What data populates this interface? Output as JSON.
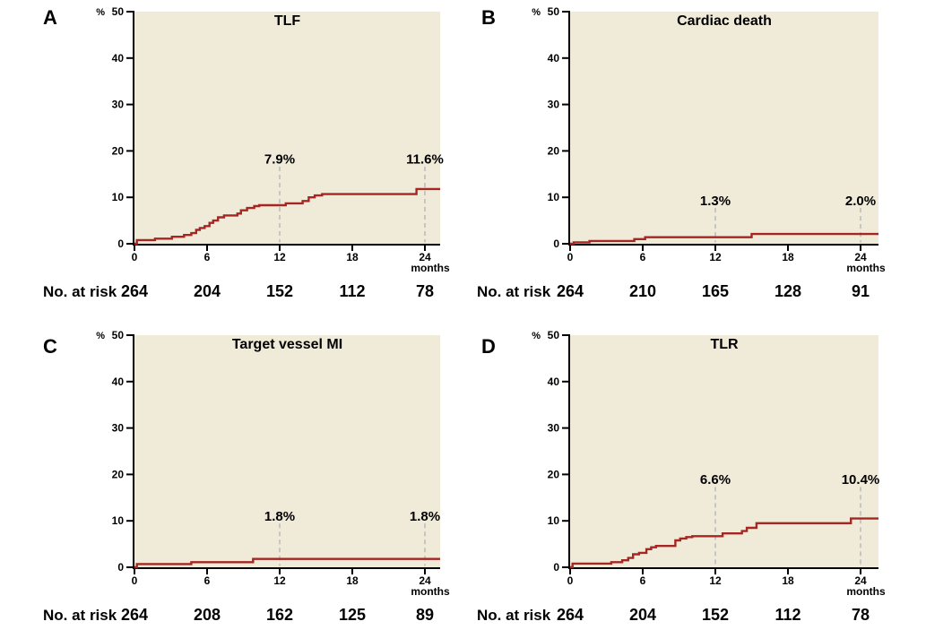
{
  "figure": {
    "risk_label": "No. at risk",
    "y_axis": {
      "percent_symbol": "%",
      "ticks": [
        0,
        10,
        20,
        30,
        40,
        50
      ],
      "max": 50
    },
    "x_axis": {
      "ticks": [
        0,
        6,
        12,
        18,
        24
      ],
      "unit": "months"
    },
    "colors": {
      "plot_bg": "#efebd8",
      "curve": "#a52622",
      "dash": "#bcbcbc",
      "ink": "#000000"
    }
  },
  "chart_data": [
    {
      "panel": "A",
      "type": "line",
      "title": "TLF",
      "xlabel": "months",
      "ylabel": "%",
      "xlim": [
        0,
        25.3
      ],
      "ylim": [
        0,
        50
      ],
      "annotations": [
        {
          "x": 12,
          "label": "7.9%",
          "label_y_pct": 18.2
        },
        {
          "x": 24,
          "label": "11.6%",
          "label_y_pct": 18.2
        }
      ],
      "at_risk": {
        "times": [
          0,
          6,
          12,
          18,
          24
        ],
        "counts": [
          264,
          204,
          152,
          112,
          78
        ]
      },
      "steps": [
        [
          0,
          0
        ],
        [
          0.2,
          0.8
        ],
        [
          1.7,
          0.8
        ],
        [
          1.7,
          1.1
        ],
        [
          3.1,
          1.1
        ],
        [
          3.1,
          1.5
        ],
        [
          4.1,
          1.5
        ],
        [
          4.1,
          1.9
        ],
        [
          4.7,
          1.9
        ],
        [
          4.7,
          2.3
        ],
        [
          5.1,
          2.3
        ],
        [
          5.1,
          3.0
        ],
        [
          5.4,
          3.0
        ],
        [
          5.4,
          3.4
        ],
        [
          5.8,
          3.4
        ],
        [
          5.8,
          3.8
        ],
        [
          6.2,
          3.8
        ],
        [
          6.2,
          4.5
        ],
        [
          6.5,
          4.5
        ],
        [
          6.5,
          5.0
        ],
        [
          6.9,
          5.0
        ],
        [
          6.9,
          5.7
        ],
        [
          7.4,
          5.7
        ],
        [
          7.4,
          6.1
        ],
        [
          8.5,
          6.1
        ],
        [
          8.5,
          6.5
        ],
        [
          8.8,
          6.5
        ],
        [
          8.8,
          7.2
        ],
        [
          9.3,
          7.2
        ],
        [
          9.3,
          7.7
        ],
        [
          9.9,
          7.7
        ],
        [
          9.9,
          8.1
        ],
        [
          10.3,
          8.1
        ],
        [
          10.3,
          8.3
        ],
        [
          12.5,
          8.3
        ],
        [
          12.5,
          8.7
        ],
        [
          13.9,
          8.7
        ],
        [
          13.9,
          9.2
        ],
        [
          14.4,
          9.2
        ],
        [
          14.4,
          10.0
        ],
        [
          14.9,
          10.0
        ],
        [
          14.9,
          10.4
        ],
        [
          15.5,
          10.4
        ],
        [
          15.5,
          10.7
        ],
        [
          23.3,
          10.7
        ],
        [
          23.3,
          11.8
        ]
      ]
    },
    {
      "panel": "B",
      "type": "line",
      "title": "Cardiac death",
      "xlabel": "months",
      "ylabel": "%",
      "xlim": [
        0,
        25.5
      ],
      "ylim": [
        0,
        50
      ],
      "annotations": [
        {
          "x": 12,
          "label": "1.3%",
          "label_y_pct": 9.3
        },
        {
          "x": 24,
          "label": "2.0%",
          "label_y_pct": 9.3
        }
      ],
      "at_risk": {
        "times": [
          0,
          6,
          12,
          18,
          24
        ],
        "counts": [
          264,
          210,
          165,
          128,
          91
        ]
      },
      "steps": [
        [
          0,
          0
        ],
        [
          0.3,
          0.3
        ],
        [
          1.6,
          0.3
        ],
        [
          1.6,
          0.6
        ],
        [
          5.3,
          0.6
        ],
        [
          5.3,
          1.0
        ],
        [
          6.2,
          1.0
        ],
        [
          6.2,
          1.4
        ],
        [
          15.0,
          1.4
        ],
        [
          15.0,
          2.1
        ]
      ]
    },
    {
      "panel": "C",
      "type": "line",
      "title": "Target vessel MI",
      "xlabel": "months",
      "ylabel": "%",
      "xlim": [
        0,
        25.3
      ],
      "ylim": [
        0,
        50
      ],
      "annotations": [
        {
          "x": 12,
          "label": "1.8%",
          "label_y_pct": 11.0
        },
        {
          "x": 24,
          "label": "1.8%",
          "label_y_pct": 11.0
        }
      ],
      "at_risk": {
        "times": [
          0,
          6,
          12,
          18,
          24
        ],
        "counts": [
          264,
          208,
          162,
          125,
          89
        ]
      },
      "steps": [
        [
          0,
          0
        ],
        [
          0.2,
          0.7
        ],
        [
          4.7,
          0.7
        ],
        [
          4.7,
          1.1
        ],
        [
          9.8,
          1.1
        ],
        [
          9.8,
          1.8
        ]
      ]
    },
    {
      "panel": "D",
      "type": "line",
      "title": "TLR",
      "xlabel": "months",
      "ylabel": "%",
      "xlim": [
        0,
        25.5
      ],
      "ylim": [
        0,
        50
      ],
      "annotations": [
        {
          "x": 12,
          "label": "6.6%",
          "label_y_pct": 18.9
        },
        {
          "x": 24,
          "label": "10.4%",
          "label_y_pct": 18.9
        }
      ],
      "at_risk": {
        "times": [
          0,
          6,
          12,
          18,
          24
        ],
        "counts": [
          264,
          204,
          152,
          112,
          78
        ]
      },
      "steps": [
        [
          0,
          0
        ],
        [
          0.2,
          0.8
        ],
        [
          3.4,
          0.8
        ],
        [
          3.4,
          1.1
        ],
        [
          4.3,
          1.1
        ],
        [
          4.3,
          1.5
        ],
        [
          4.8,
          1.5
        ],
        [
          4.8,
          2.0
        ],
        [
          5.2,
          2.0
        ],
        [
          5.2,
          2.8
        ],
        [
          5.7,
          2.8
        ],
        [
          5.7,
          3.1
        ],
        [
          6.3,
          3.1
        ],
        [
          6.3,
          3.9
        ],
        [
          6.7,
          3.9
        ],
        [
          6.7,
          4.3
        ],
        [
          7.1,
          4.3
        ],
        [
          7.1,
          4.6
        ],
        [
          8.7,
          4.6
        ],
        [
          8.7,
          5.8
        ],
        [
          9.1,
          5.8
        ],
        [
          9.1,
          6.2
        ],
        [
          9.6,
          6.2
        ],
        [
          9.6,
          6.5
        ],
        [
          10.1,
          6.5
        ],
        [
          10.1,
          6.7
        ],
        [
          12.6,
          6.7
        ],
        [
          12.6,
          7.3
        ],
        [
          14.2,
          7.3
        ],
        [
          14.2,
          7.8
        ],
        [
          14.6,
          7.8
        ],
        [
          14.6,
          8.5
        ],
        [
          15.4,
          8.5
        ],
        [
          15.4,
          9.5
        ],
        [
          23.2,
          9.5
        ],
        [
          23.2,
          10.5
        ]
      ]
    }
  ]
}
